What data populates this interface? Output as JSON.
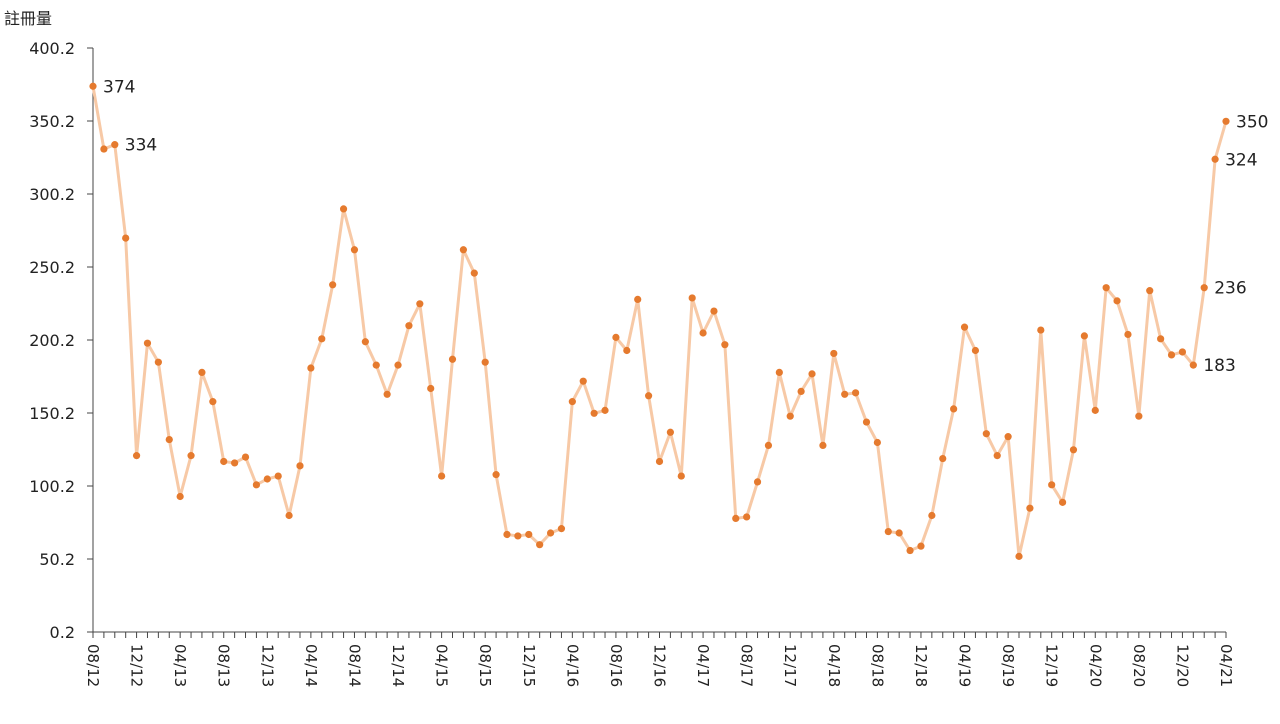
{
  "chart_data": {
    "type": "line",
    "ylabel": "註冊量",
    "ylim": [
      0.2,
      400.2
    ],
    "yticks": [
      "0.2",
      "50.2",
      "100.2",
      "150.2",
      "200.2",
      "250.2",
      "300.2",
      "350.2",
      "400.2"
    ],
    "x_tick_labels": [
      "08/12",
      "12/12",
      "04/13",
      "08/13",
      "12/13",
      "04/14",
      "08/14",
      "12/14",
      "04/15",
      "08/15",
      "12/15",
      "04/16",
      "08/16",
      "12/16",
      "04/17",
      "08/17",
      "12/17",
      "04/18",
      "08/18",
      "12/18",
      "04/19",
      "08/19",
      "12/19",
      "04/20",
      "08/20",
      "12/20",
      "04/21"
    ],
    "start_month": "08/12",
    "series": [
      {
        "values": [
          374,
          331,
          334,
          270,
          121,
          198,
          185,
          132,
          93,
          121,
          178,
          158,
          117,
          116,
          120,
          101,
          105,
          107,
          80,
          114,
          181,
          201,
          238,
          290,
          262,
          199,
          183,
          163,
          183,
          210,
          225,
          167,
          107,
          187,
          262,
          246,
          185,
          108,
          67,
          66,
          67,
          60,
          68,
          71,
          158,
          172,
          150,
          152,
          202,
          193,
          228,
          162,
          117,
          137,
          107,
          229,
          205,
          220,
          197,
          78,
          79,
          103,
          128,
          178,
          148,
          165,
          177,
          128,
          191,
          163,
          164,
          144,
          130,
          69,
          68,
          56,
          59,
          80,
          119,
          153,
          209,
          193,
          136,
          121,
          134,
          52,
          85,
          207,
          101,
          89,
          125,
          203,
          152,
          236,
          227,
          204,
          148,
          234,
          201,
          190,
          192,
          183,
          236,
          324,
          350
        ],
        "color": "#E57A2E",
        "line_color": "#F7C9A6"
      }
    ],
    "annotations": [
      {
        "index": 0,
        "text": "374"
      },
      {
        "index": 2,
        "text": "334"
      },
      {
        "index": 101,
        "text": "183"
      },
      {
        "index": 102,
        "text": "236"
      },
      {
        "index": 103,
        "text": "324"
      },
      {
        "index": 104,
        "text": "350"
      }
    ],
    "grid": false,
    "legend": "none"
  }
}
